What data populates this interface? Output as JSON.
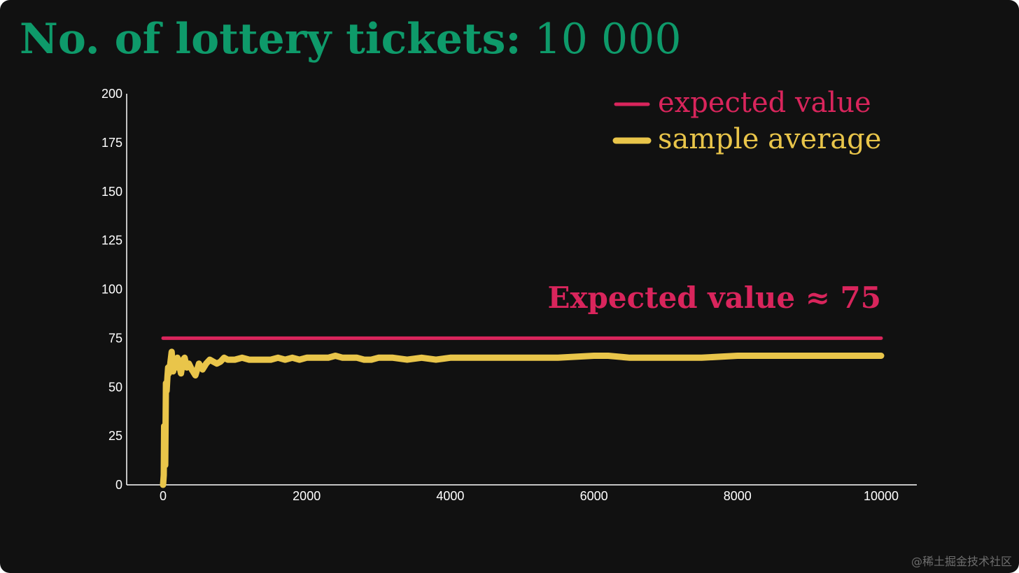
{
  "title": {
    "label": "No. of lottery tickets:",
    "count": "10 000"
  },
  "colors": {
    "background": "#111111",
    "title": "#0e9a6a",
    "expected": "#d9255c",
    "sample": "#e9c54a",
    "axis": "#ffffff"
  },
  "watermark": "@稀土掘金技术社区",
  "chart_data": {
    "type": "line",
    "xlim": [
      0,
      10000
    ],
    "ylim": [
      0,
      200
    ],
    "xticks": [
      "0",
      "2000",
      "4000",
      "6000",
      "8000",
      "10000"
    ],
    "yticks": [
      "0",
      "25",
      "50",
      "75",
      "100",
      "125",
      "150",
      "175",
      "200"
    ],
    "grid": false,
    "legend_position": "top-right",
    "legend": [
      "expected value",
      "sample average"
    ],
    "annotation": "Expected value ≈ 75",
    "series": [
      {
        "name": "expected value",
        "x": [
          0,
          10000
        ],
        "y": [
          75,
          75
        ]
      },
      {
        "name": "sample average",
        "x": [
          0,
          10,
          15,
          20,
          25,
          30,
          40,
          50,
          60,
          70,
          80,
          100,
          120,
          140,
          160,
          180,
          200,
          220,
          250,
          280,
          300,
          330,
          360,
          400,
          450,
          500,
          550,
          600,
          650,
          700,
          750,
          800,
          850,
          900,
          1000,
          1100,
          1200,
          1300,
          1400,
          1500,
          1600,
          1700,
          1800,
          1900,
          2000,
          2100,
          2200,
          2300,
          2400,
          2500,
          2600,
          2700,
          2800,
          2900,
          3000,
          3200,
          3400,
          3600,
          3800,
          4000,
          4500,
          5000,
          5500,
          6000,
          6200,
          6500,
          7000,
          7500,
          8000,
          8500,
          9000,
          9500,
          10000
        ],
        "y": [
          0,
          5,
          30,
          20,
          28,
          10,
          52,
          48,
          55,
          60,
          57,
          62,
          68,
          58,
          63,
          60,
          65,
          62,
          57,
          64,
          65,
          60,
          62,
          59,
          56,
          62,
          59,
          62,
          64,
          63,
          62,
          63,
          65,
          64,
          64,
          65,
          64,
          64,
          64,
          64,
          65,
          64,
          65,
          64,
          65,
          65,
          65,
          65,
          66,
          65,
          65,
          65,
          64,
          64,
          65,
          65,
          64,
          65,
          64,
          65,
          65,
          65,
          65,
          66,
          66,
          65,
          65,
          65,
          66,
          66,
          66,
          66,
          66
        ]
      }
    ]
  }
}
